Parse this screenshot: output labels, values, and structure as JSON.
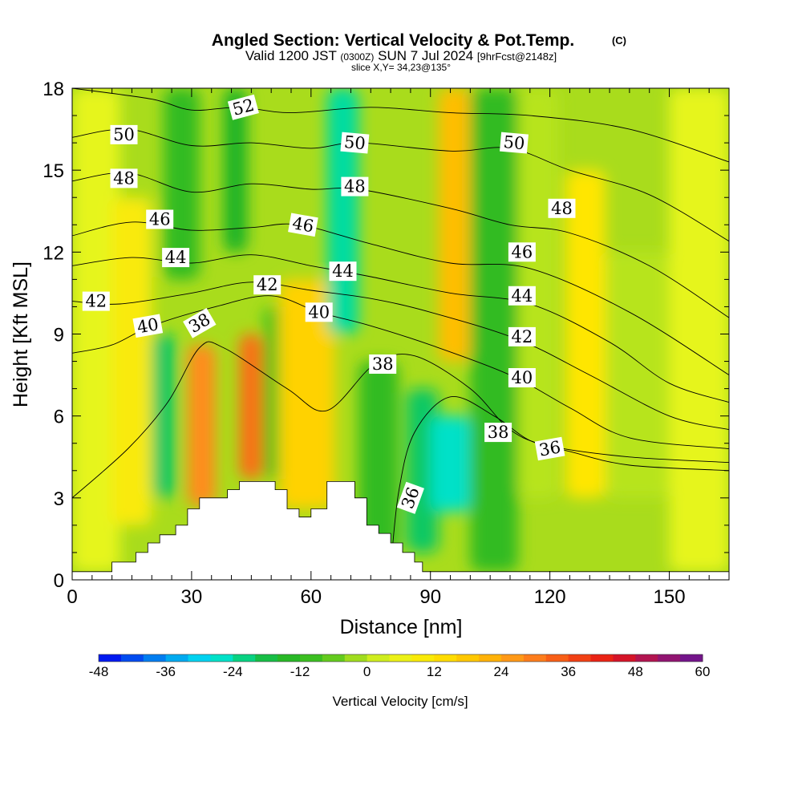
{
  "chart_data": {
    "type": "heatmap",
    "title": "Angled Section: Vertical Velocity & Pot.Temp.",
    "title_tag": "(C)",
    "subtitle": {
      "valid_prefix": "Valid 1200 JST",
      "utc": "(0300Z)",
      "date": "SUN 7 Jul 2024",
      "forecast": "[9hrFcst@2148z]"
    },
    "slice_label": "slice X,Y= 34,23@135°",
    "xlabel": "Distance [nm]",
    "ylabel": "Height [Kft MSL]",
    "xlim": [
      0,
      165
    ],
    "ylim": [
      0,
      18
    ],
    "x_ticks": [
      0,
      30,
      60,
      90,
      120,
      150
    ],
    "x_tick_labels": [
      "0",
      "30",
      "60",
      "90",
      "120",
      "150"
    ],
    "y_ticks": [
      0,
      3,
      6,
      9,
      12,
      15,
      18
    ],
    "y_tick_labels": [
      "0",
      "3",
      "6",
      "9",
      "12",
      "15",
      "18"
    ],
    "colorbar": {
      "label": "Vertical Velocity [cm/s]",
      "min": -48,
      "max": 60,
      "step": 4,
      "tick_values": [
        -48,
        -36,
        -24,
        -12,
        0,
        12,
        24,
        36,
        48,
        60
      ],
      "tick_labels": [
        "-48",
        "-36",
        "-24",
        "-12",
        "0",
        "12",
        "24",
        "36",
        "48",
        "60"
      ]
    },
    "vertical_velocity_bands": [
      {
        "x0": 0,
        "x1": 12,
        "y0": 0.3,
        "y1": 18,
        "value": 4
      },
      {
        "x0": 10,
        "x1": 20,
        "y0": 2,
        "y1": 14,
        "value": 10
      },
      {
        "x0": 20,
        "x1": 26,
        "y0": 3,
        "y1": 9,
        "value": -20
      },
      {
        "x0": 23,
        "x1": 32,
        "y0": 11,
        "y1": 18,
        "value": -12
      },
      {
        "x0": 29,
        "x1": 36,
        "y0": 2.7,
        "y1": 8.6,
        "value": 28
      },
      {
        "x0": 38,
        "x1": 44,
        "y0": 12,
        "y1": 18,
        "value": -16
      },
      {
        "x0": 42,
        "x1": 48,
        "y0": 3.7,
        "y1": 9,
        "value": 32
      },
      {
        "x0": 48,
        "x1": 56,
        "y0": 3.7,
        "y1": 10,
        "value": -8
      },
      {
        "x0": 52,
        "x1": 66,
        "y0": 2.6,
        "y1": 11,
        "value": 16
      },
      {
        "x0": 64,
        "x1": 72,
        "y0": 9,
        "y1": 18,
        "value": -24
      },
      {
        "x0": 72,
        "x1": 82,
        "y0": 1,
        "y1": 8,
        "value": -12
      },
      {
        "x0": 84,
        "x1": 92,
        "y0": 1,
        "y1": 7,
        "value": -20
      },
      {
        "x0": 90,
        "x1": 100,
        "y0": 2.5,
        "y1": 6,
        "value": -26
      },
      {
        "x0": 92,
        "x1": 100,
        "y0": 8,
        "y1": 18,
        "value": 20
      },
      {
        "x0": 100,
        "x1": 112,
        "y0": 0.3,
        "y1": 18,
        "value": -12
      },
      {
        "x0": 112,
        "x1": 122,
        "y0": 3,
        "y1": 18,
        "value": 0
      },
      {
        "x0": 124,
        "x1": 134,
        "y0": 3,
        "y1": 15,
        "value": 12
      },
      {
        "x0": 134,
        "x1": 150,
        "y0": 3,
        "y1": 12,
        "value": 0
      },
      {
        "x0": 150,
        "x1": 165,
        "y0": 0.3,
        "y1": 18,
        "value": 4
      }
    ],
    "theta_contours": [
      {
        "level": 36,
        "label": "36",
        "points": [
          [
            80,
            0.4
          ],
          [
            82,
            3.2
          ],
          [
            86,
            5.4
          ],
          [
            95,
            6.7
          ],
          [
            106,
            6
          ],
          [
            115,
            5.1
          ],
          [
            125,
            4.7
          ],
          [
            140,
            4.2
          ],
          [
            165,
            4
          ]
        ]
      },
      {
        "level": 38,
        "label": "38",
        "points": [
          [
            0,
            3
          ],
          [
            14,
            4.8
          ],
          [
            24,
            6.5
          ],
          [
            32,
            8.5
          ],
          [
            38,
            8.5
          ],
          [
            54,
            7
          ],
          [
            64,
            6.2
          ],
          [
            76,
            7.9
          ],
          [
            86,
            8.2
          ],
          [
            100,
            7
          ],
          [
            110,
            5.5
          ],
          [
            120,
            4.9
          ],
          [
            140,
            4.5
          ],
          [
            165,
            4.3
          ]
        ]
      },
      {
        "level": 40,
        "label": "40",
        "points": [
          [
            0,
            8.3
          ],
          [
            10,
            8.6
          ],
          [
            20,
            9.3
          ],
          [
            36,
            10
          ],
          [
            50,
            10.4
          ],
          [
            62,
            9.8
          ],
          [
            75,
            9.3
          ],
          [
            90,
            8.6
          ],
          [
            110,
            7.5
          ],
          [
            125,
            6.3
          ],
          [
            140,
            5.2
          ],
          [
            165,
            4.8
          ]
        ]
      },
      {
        "level": 42,
        "label": "42",
        "points": [
          [
            0,
            10.2
          ],
          [
            12,
            10.1
          ],
          [
            30,
            10.5
          ],
          [
            45,
            10.9
          ],
          [
            60,
            10.6
          ],
          [
            75,
            10.3
          ],
          [
            90,
            9.8
          ],
          [
            112,
            8.8
          ],
          [
            130,
            7.5
          ],
          [
            150,
            6
          ],
          [
            165,
            5.5
          ]
        ]
      },
      {
        "level": 44,
        "label": "44",
        "points": [
          [
            0,
            11.5
          ],
          [
            15,
            11.8
          ],
          [
            30,
            11.6
          ],
          [
            45,
            11.9
          ],
          [
            60,
            11.5
          ],
          [
            75,
            11.1
          ],
          [
            95,
            10.5
          ],
          [
            115,
            10.1
          ],
          [
            135,
            8.7
          ],
          [
            150,
            7.2
          ],
          [
            165,
            6.5
          ]
        ]
      },
      {
        "level": 46,
        "label": "46",
        "points": [
          [
            0,
            12.6
          ],
          [
            15,
            13.1
          ],
          [
            30,
            12.8
          ],
          [
            45,
            12.9
          ],
          [
            57,
            13
          ],
          [
            75,
            12.3
          ],
          [
            95,
            11.6
          ],
          [
            115,
            11.4
          ],
          [
            140,
            9.8
          ],
          [
            165,
            7.5
          ]
        ]
      },
      {
        "level": 48,
        "label": "48",
        "points": [
          [
            0,
            14.6
          ],
          [
            14,
            14.9
          ],
          [
            30,
            14.2
          ],
          [
            45,
            14.5
          ],
          [
            60,
            14.3
          ],
          [
            72,
            14.3
          ],
          [
            95,
            13.6
          ],
          [
            110,
            13
          ],
          [
            125,
            12.7
          ],
          [
            145,
            11.5
          ],
          [
            165,
            9.6
          ]
        ]
      },
      {
        "level": 50,
        "label": "50",
        "points": [
          [
            0,
            16.2
          ],
          [
            14,
            16.5
          ],
          [
            30,
            15.9
          ],
          [
            45,
            16
          ],
          [
            60,
            15.8
          ],
          [
            72,
            16
          ],
          [
            95,
            15.7
          ],
          [
            110,
            15.8
          ],
          [
            125,
            15
          ],
          [
            145,
            14.1
          ],
          [
            165,
            12.4
          ]
        ]
      },
      {
        "level": 52,
        "label": "52",
        "points": [
          [
            0,
            18
          ],
          [
            20,
            17.6
          ],
          [
            30,
            17.2
          ],
          [
            42,
            17.3
          ],
          [
            55,
            17.1
          ],
          [
            75,
            17.3
          ],
          [
            95,
            17.1
          ],
          [
            115,
            17
          ],
          [
            140,
            16.5
          ],
          [
            165,
            15.3
          ]
        ]
      }
    ],
    "contour_labels": [
      {
        "text": "36",
        "x": 85,
        "y": 3.0,
        "angle": -70
      },
      {
        "text": "36",
        "x": 120,
        "y": 4.8,
        "angle": -10
      },
      {
        "text": "38",
        "x": 32,
        "y": 9.4,
        "angle": -30
      },
      {
        "text": "38",
        "x": 78,
        "y": 7.9,
        "angle": 0
      },
      {
        "text": "38",
        "x": 107,
        "y": 5.4,
        "angle": 0
      },
      {
        "text": "40",
        "x": 19,
        "y": 9.3,
        "angle": -10
      },
      {
        "text": "40",
        "x": 62,
        "y": 9.8,
        "angle": 0
      },
      {
        "text": "40",
        "x": 113,
        "y": 7.4,
        "angle": 0
      },
      {
        "text": "42",
        "x": 6,
        "y": 10.2,
        "angle": 0
      },
      {
        "text": "42",
        "x": 49,
        "y": 10.8,
        "angle": 0
      },
      {
        "text": "42",
        "x": 113,
        "y": 8.9,
        "angle": 0
      },
      {
        "text": "44",
        "x": 26,
        "y": 11.8,
        "angle": 0
      },
      {
        "text": "44",
        "x": 68,
        "y": 11.3,
        "angle": 0
      },
      {
        "text": "44",
        "x": 113,
        "y": 10.4,
        "angle": 0
      },
      {
        "text": "46",
        "x": 22,
        "y": 13.2,
        "angle": 0
      },
      {
        "text": "46",
        "x": 58,
        "y": 13.0,
        "angle": 10
      },
      {
        "text": "46",
        "x": 113,
        "y": 12.0,
        "angle": 0
      },
      {
        "text": "48",
        "x": 13,
        "y": 14.7,
        "angle": 0
      },
      {
        "text": "48",
        "x": 71,
        "y": 14.4,
        "angle": 0
      },
      {
        "text": "48",
        "x": 123,
        "y": 13.6,
        "angle": 0
      },
      {
        "text": "50",
        "x": 13,
        "y": 16.3,
        "angle": 0
      },
      {
        "text": "50",
        "x": 71,
        "y": 16.0,
        "angle": 5
      },
      {
        "text": "50",
        "x": 111,
        "y": 16.0,
        "angle": 5
      },
      {
        "text": "52",
        "x": 43,
        "y": 17.3,
        "angle": -15
      }
    ],
    "terrain": [
      [
        0,
        0.3
      ],
      [
        10,
        0.3
      ],
      [
        10,
        0.65
      ],
      [
        16,
        0.65
      ],
      [
        16,
        1.0
      ],
      [
        19,
        1.0
      ],
      [
        19,
        1.35
      ],
      [
        22,
        1.35
      ],
      [
        22,
        1.65
      ],
      [
        26,
        1.65
      ],
      [
        26,
        2.0
      ],
      [
        29,
        2.0
      ],
      [
        29,
        2.6
      ],
      [
        32,
        2.6
      ],
      [
        32,
        3.0
      ],
      [
        39,
        3.0
      ],
      [
        39,
        3.3
      ],
      [
        42,
        3.3
      ],
      [
        42,
        3.6
      ],
      [
        51,
        3.6
      ],
      [
        51,
        3.3
      ],
      [
        54,
        3.3
      ],
      [
        54,
        2.6
      ],
      [
        57,
        2.6
      ],
      [
        57,
        2.3
      ],
      [
        60,
        2.3
      ],
      [
        60,
        2.6
      ],
      [
        64,
        2.6
      ],
      [
        64,
        3.6
      ],
      [
        71,
        3.6
      ],
      [
        71,
        3.0
      ],
      [
        74,
        3.0
      ],
      [
        74,
        2.0
      ],
      [
        77,
        2.0
      ],
      [
        77,
        1.7
      ],
      [
        80,
        1.7
      ],
      [
        80,
        1.35
      ],
      [
        83,
        1.35
      ],
      [
        83,
        1.0
      ],
      [
        86,
        1.0
      ],
      [
        86,
        0.65
      ],
      [
        88,
        0.65
      ],
      [
        88,
        0.3
      ],
      [
        165,
        0.3
      ]
    ]
  }
}
